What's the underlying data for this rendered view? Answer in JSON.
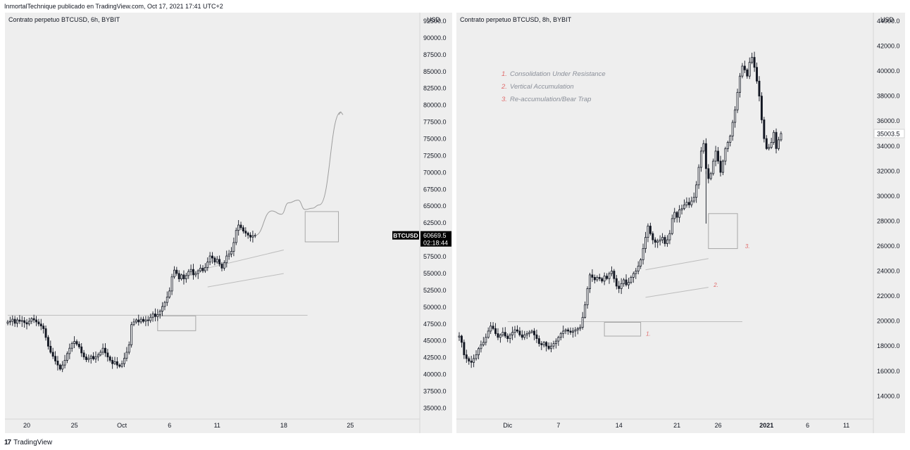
{
  "header": {
    "text": "InmortalTechnique publicado en TradingView.com, Oct 17, 2021 17:41 UTC+2"
  },
  "footer": {
    "logo": "17",
    "brand": "TradingView"
  },
  "chart_data": [
    {
      "type": "candlestick",
      "title": "Contrato perpetuo BTCUSD, 6h, BYBIT",
      "currency": "USD",
      "ylim": [
        34000,
        92500
      ],
      "yticks": [
        "35000.0",
        "37500.0",
        "40000.0",
        "42500.0",
        "45000.0",
        "47500.0",
        "50000.0",
        "52500.0",
        "55000.0",
        "57500.0",
        "60000.0",
        "62500.0",
        "65000.0",
        "67500.0",
        "70000.0",
        "72500.0",
        "75000.0",
        "77500.0",
        "80000.0",
        "82500.0",
        "85000.0",
        "87500.0",
        "90000.0",
        "92500.0"
      ],
      "xticks": [
        {
          "label": "20",
          "i": 8
        },
        {
          "label": "25",
          "i": 28
        },
        {
          "label": "Oct",
          "i": 48
        },
        {
          "label": "6",
          "i": 68
        },
        {
          "label": "11",
          "i": 88
        },
        {
          "label": "18",
          "i": 116
        },
        {
          "label": "25",
          "i": 144
        }
      ],
      "x_total": 172,
      "price_label": {
        "symbol": "BTCUSD",
        "price": "60669.5",
        "countdown": "02:18:44"
      },
      "closes": [
        47800,
        47900,
        48200,
        47600,
        48100,
        47900,
        48000,
        47700,
        47500,
        47900,
        48300,
        48100,
        47800,
        47500,
        47200,
        46800,
        45500,
        44200,
        43300,
        42700,
        42000,
        41400,
        40800,
        41400,
        42100,
        43100,
        43900,
        44600,
        44900,
        44500,
        44100,
        43200,
        42600,
        42200,
        42400,
        42700,
        42300,
        42600,
        42900,
        43300,
        43900,
        43200,
        42600,
        42100,
        41600,
        41900,
        41400,
        41200,
        41600,
        42400,
        43300,
        44400,
        47400,
        47800,
        48100,
        47800,
        48200,
        47900,
        48100,
        48000,
        48500,
        49000,
        48600,
        48900,
        49400,
        50100,
        50700,
        51500,
        52400,
        54500,
        55500,
        55000,
        54200,
        54800,
        54200,
        54700,
        55300,
        55600,
        54800,
        55000,
        55400,
        55800,
        55400,
        55900,
        56700,
        57600,
        57300,
        56700,
        57100,
        56400,
        55800,
        56600,
        57600,
        57900,
        58300,
        59600,
        61400,
        62200,
        61800,
        61300,
        61000,
        60700,
        60400,
        60600,
        60669.5
      ],
      "projection": [
        [
          60669.5,
          0
        ],
        [
          64300,
          7
        ],
        [
          63800,
          11
        ],
        [
          65500,
          14
        ],
        [
          65900,
          18
        ],
        [
          64500,
          21
        ],
        [
          64700,
          24
        ],
        [
          65200,
          27
        ],
        [
          79000,
          36
        ]
      ],
      "boxes": [
        {
          "x0": 63,
          "x1": 79,
          "y0": 46500,
          "y1": 48700
        },
        {
          "x0": 125,
          "x1": 139,
          "y0": 59700,
          "y1": 64200
        }
      ],
      "resistance": {
        "y": 48800,
        "x0": 0,
        "x1": 126
      },
      "channel": [
        {
          "x0": 84,
          "y0": 55800,
          "x1": 116,
          "y1": 58500
        },
        {
          "x0": 84,
          "y0": 53000,
          "x1": 116,
          "y1": 55000
        }
      ]
    },
    {
      "type": "candlestick",
      "title": "Contrato perpetuo BTCUSD, 8h, BYBIT",
      "currency": "USD",
      "ylim": [
        12500,
        44000
      ],
      "yticks": [
        "14000.0",
        "16000.0",
        "18000.0",
        "20000.0",
        "22000.0",
        "24000.0",
        "26000.0",
        "28000.0",
        "30000.0",
        "32000.0",
        "34000.0",
        "36000.0",
        "38000.0",
        "40000.0",
        "42000.0",
        "44000.0"
      ],
      "xticks": [
        {
          "label": "Dic",
          "i": 20
        },
        {
          "label": "7",
          "i": 41
        },
        {
          "label": "14",
          "i": 66
        },
        {
          "label": "21",
          "i": 90
        },
        {
          "label": "26",
          "i": 107
        },
        {
          "label": "2021",
          "i": 127
        },
        {
          "label": "6",
          "i": 144
        },
        {
          "label": "11",
          "i": 160
        }
      ],
      "x_total": 170,
      "price_label": {
        "price": "35003.5"
      },
      "closes": [
        18800,
        18300,
        17300,
        17000,
        16800,
        16700,
        17000,
        17300,
        17800,
        18100,
        18300,
        18700,
        19200,
        19600,
        19400,
        19000,
        18700,
        18900,
        19100,
        18800,
        18600,
        18900,
        19100,
        19300,
        19200,
        18900,
        18700,
        18900,
        19000,
        19100,
        19200,
        18900,
        18600,
        18200,
        18100,
        18300,
        18000,
        17800,
        18000,
        18200,
        18400,
        18700,
        19000,
        19200,
        19300,
        19200,
        19100,
        19200,
        19300,
        19400,
        19500,
        20300,
        21300,
        22600,
        23700,
        23500,
        23300,
        23500,
        23400,
        23200,
        23600,
        23400,
        23800,
        24000,
        23400,
        22800,
        22600,
        23000,
        23300,
        22900,
        23100,
        23500,
        23800,
        24000,
        24400,
        24900,
        25800,
        26700,
        27600,
        27000,
        26500,
        26300,
        26400,
        26500,
        26700,
        26200,
        26500,
        27000,
        28200,
        28700,
        28300,
        28900,
        29000,
        29300,
        29500,
        29300,
        29600,
        29900,
        30900,
        32300,
        33600,
        34200,
        32200,
        31400,
        31800,
        32800,
        33600,
        32800,
        31900,
        32800,
        33800,
        34300,
        34800,
        35900,
        36900,
        38300,
        39600,
        40400,
        40100,
        39600,
        40700,
        41100,
        40300,
        39200,
        38000,
        36100,
        34600,
        33800,
        33900,
        34300,
        35100,
        33800,
        34500,
        35003.5
      ],
      "boxes": [
        {
          "x0": 60,
          "x1": 75,
          "y0": 18800,
          "y1": 19900
        },
        {
          "x0": 103,
          "x1": 115,
          "y0": 25800,
          "y1": 28600
        }
      ],
      "resistance": {
        "y": 19950,
        "x0": 20,
        "x1": 117
      },
      "channel": [
        {
          "x0": 77,
          "y0": 24100,
          "x1": 103,
          "y1": 25000
        },
        {
          "x0": 77,
          "y0": 21900,
          "x1": 103,
          "y1": 22700
        }
      ],
      "markers": [
        {
          "label": "1.",
          "x": 76,
          "y": 19000
        },
        {
          "label": "2.",
          "x": 104,
          "y": 22900
        },
        {
          "label": "3.",
          "x": 117,
          "y": 26000
        }
      ],
      "legend": [
        {
          "num": "1.",
          "text": "Consolidation Under Resistance"
        },
        {
          "num": "2.",
          "text": "Vertical Accumulation"
        },
        {
          "num": "3.",
          "text": "Re-accumulation/Bear Trap"
        }
      ]
    }
  ],
  "colors": {
    "panel_bg": "#eeeeee",
    "axis_bg": "#eeeeee",
    "candle": "#131722",
    "price_tag": "#000000",
    "annotation_red": "#e06b6b",
    "drawing": "#9e9e9e"
  }
}
